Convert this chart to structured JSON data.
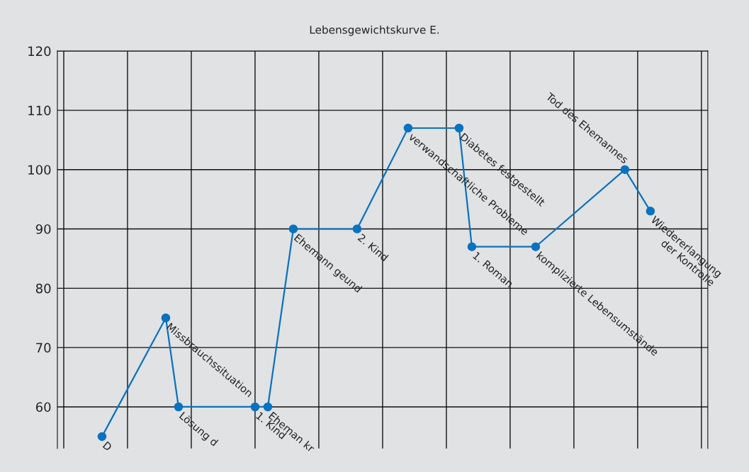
{
  "chart_data": {
    "type": "line",
    "title": "Lebensgewichtskurve E.",
    "categories": [
      null,
      null,
      null,
      null,
      null,
      null,
      null,
      null,
      null,
      null,
      null,
      null,
      null,
      null,
      null,
      null,
      null,
      null,
      null,
      null,
      null,
      null,
      null,
      null,
      null,
      null,
      null,
      null,
      null,
      null,
      null,
      null,
      null,
      null,
      null,
      null,
      null,
      null,
      null,
      null,
      null,
      null,
      null,
      null,
      null,
      null,
      null,
      null,
      null,
      null,
      null
    ],
    "series": [
      {
        "color": "#0a72bf",
        "values": [
          null,
          null,
          null,
          55,
          null,
          null,
          null,
          null,
          75,
          60,
          null,
          null,
          null,
          null,
          null,
          60,
          60,
          null,
          90,
          null,
          null,
          null,
          null,
          90,
          null,
          null,
          null,
          107,
          null,
          null,
          null,
          107,
          87,
          null,
          null,
          null,
          null,
          87,
          null,
          null,
          null,
          null,
          null,
          null,
          100,
          null,
          93,
          null,
          null,
          null,
          null
        ]
      }
    ],
    "annotations": [
      "D",
      "Missbrauchssituation",
      "Lösung d",
      "1. Kind",
      "Eheman kr",
      "Ehemann geund",
      "2. Kind",
      "verwandschaftliche Probleme",
      "Diabetes festgestellt",
      "1. Roman",
      "komplizierte Lebensumstände",
      "Tod des Ehemannes",
      "Wiedererlangung\nder Kontrolle"
    ],
    "ylim": [
      53,
      120
    ],
    "yticks": [
      60,
      70,
      80,
      90,
      100,
      110,
      120
    ],
    "tick_labels": "y",
    "grid": true,
    "marker": "circle",
    "line_style": "solid"
  }
}
